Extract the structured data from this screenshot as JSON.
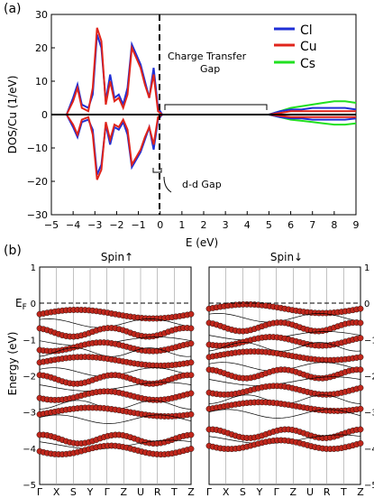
{
  "panel_a": {
    "label": "(a)",
    "ylabel": "DOS/Cu (1/eV)",
    "xlabel": "E (eV)",
    "x_ticks": [
      "−5",
      "−4",
      "−3",
      "−2",
      "−1",
      "0",
      "1",
      "2",
      "3",
      "4",
      "5",
      "6",
      "7",
      "8",
      "9"
    ],
    "y_ticks": [
      "−30",
      "−20",
      "−10",
      "0",
      "10",
      "20",
      "30"
    ],
    "legend": [
      {
        "name": "Cl",
        "color": "#1f2fd6"
      },
      {
        "name": "Cu",
        "color": "#e0241b"
      },
      {
        "name": "Cs",
        "color": "#21e021"
      }
    ],
    "annotations": {
      "ct_gap_line1": "Charge Transfer",
      "ct_gap_line2": "Gap",
      "dd_gap": "d-d Gap"
    }
  },
  "panel_b": {
    "label": "(b)",
    "ylabel": "Energy (eV)",
    "fermi": "E",
    "fermi_sub": "F",
    "left_title": "Spin↑",
    "right_title": "Spin↓",
    "k_labels": [
      "Γ",
      "X",
      "S",
      "Y",
      "Γ",
      "Z",
      "U",
      "R",
      "T",
      "Z"
    ],
    "left_y_ticks": [
      "1",
      "0",
      "−1",
      "−2",
      "−3",
      "−4",
      "−5"
    ],
    "right_y_ticks": [
      "1",
      "0",
      "−1",
      "−2",
      "−3",
      "−4",
      "−5"
    ]
  },
  "chart_data": [
    {
      "type": "line",
      "xlabel": "E (eV)",
      "ylabel": "DOS/Cu (1/eV)",
      "xlim": [
        -5,
        9
      ],
      "ylim": [
        -30,
        30
      ],
      "grid": false,
      "legend_position": "top-right",
      "x": [
        -4.3,
        -4.0,
        -3.8,
        -3.6,
        -3.3,
        -3.1,
        -2.9,
        -2.7,
        -2.5,
        -2.3,
        -2.1,
        -1.9,
        -1.7,
        -1.5,
        -1.3,
        -1.1,
        -0.9,
        -0.7,
        -0.5,
        -0.3,
        -0.1,
        0.1,
        0.3,
        0.5,
        0.7,
        0.9,
        1.2,
        1.5,
        2,
        3,
        4,
        5,
        5.5,
        6,
        6.5,
        7,
        7.5,
        8,
        8.5,
        9
      ],
      "series": [
        {
          "name": "Cl",
          "color": "#1f2fd6",
          "spin_up": [
            0,
            5,
            9,
            3,
            2,
            6,
            24,
            20,
            4,
            12,
            5,
            6,
            3,
            8,
            21,
            18,
            15,
            10,
            5,
            14,
            2,
            0,
            0,
            0,
            0,
            0,
            0,
            0,
            0,
            0,
            0,
            0,
            1,
            1.5,
            1.5,
            2,
            2,
            2,
            2,
            1.5
          ]
        },
        {
          "name": "Cu",
          "color": "#e0241b",
          "spin_up": [
            0,
            4,
            8,
            2,
            1,
            8,
            26,
            22,
            3,
            10,
            4,
            5,
            2,
            6,
            20,
            17,
            14,
            9,
            5,
            12,
            1,
            0,
            0,
            0,
            0,
            0,
            0,
            0,
            0,
            0,
            0,
            0,
            0.5,
            1,
            1,
            1,
            1,
            1,
            1,
            1
          ]
        },
        {
          "name": "Cs",
          "color": "#21e021",
          "spin_up": [
            0,
            0,
            0,
            0,
            0,
            0,
            0,
            0,
            0,
            0,
            0,
            0,
            0,
            0,
            0,
            0,
            0,
            0,
            0,
            0,
            0,
            0,
            0,
            0,
            0,
            0,
            0,
            0,
            0,
            0,
            0,
            0,
            1,
            2,
            2.5,
            3,
            3.5,
            4,
            4,
            3.5
          ]
        }
      ]
    },
    {
      "type": "line",
      "title": "Spin↑",
      "ylabel": "Energy (eV)",
      "categories": [
        "Γ",
        "X",
        "S",
        "Y",
        "Γ",
        "Z",
        "U",
        "R",
        "T",
        "Z"
      ],
      "ylim": [
        -5,
        1
      ],
      "fermi_level": 0
    },
    {
      "type": "line",
      "title": "Spin↓",
      "categories": [
        "Γ",
        "X",
        "S",
        "Y",
        "Γ",
        "Z",
        "U",
        "R",
        "T",
        "Z"
      ],
      "ylim": [
        -5,
        1
      ],
      "fermi_level": 0
    }
  ]
}
